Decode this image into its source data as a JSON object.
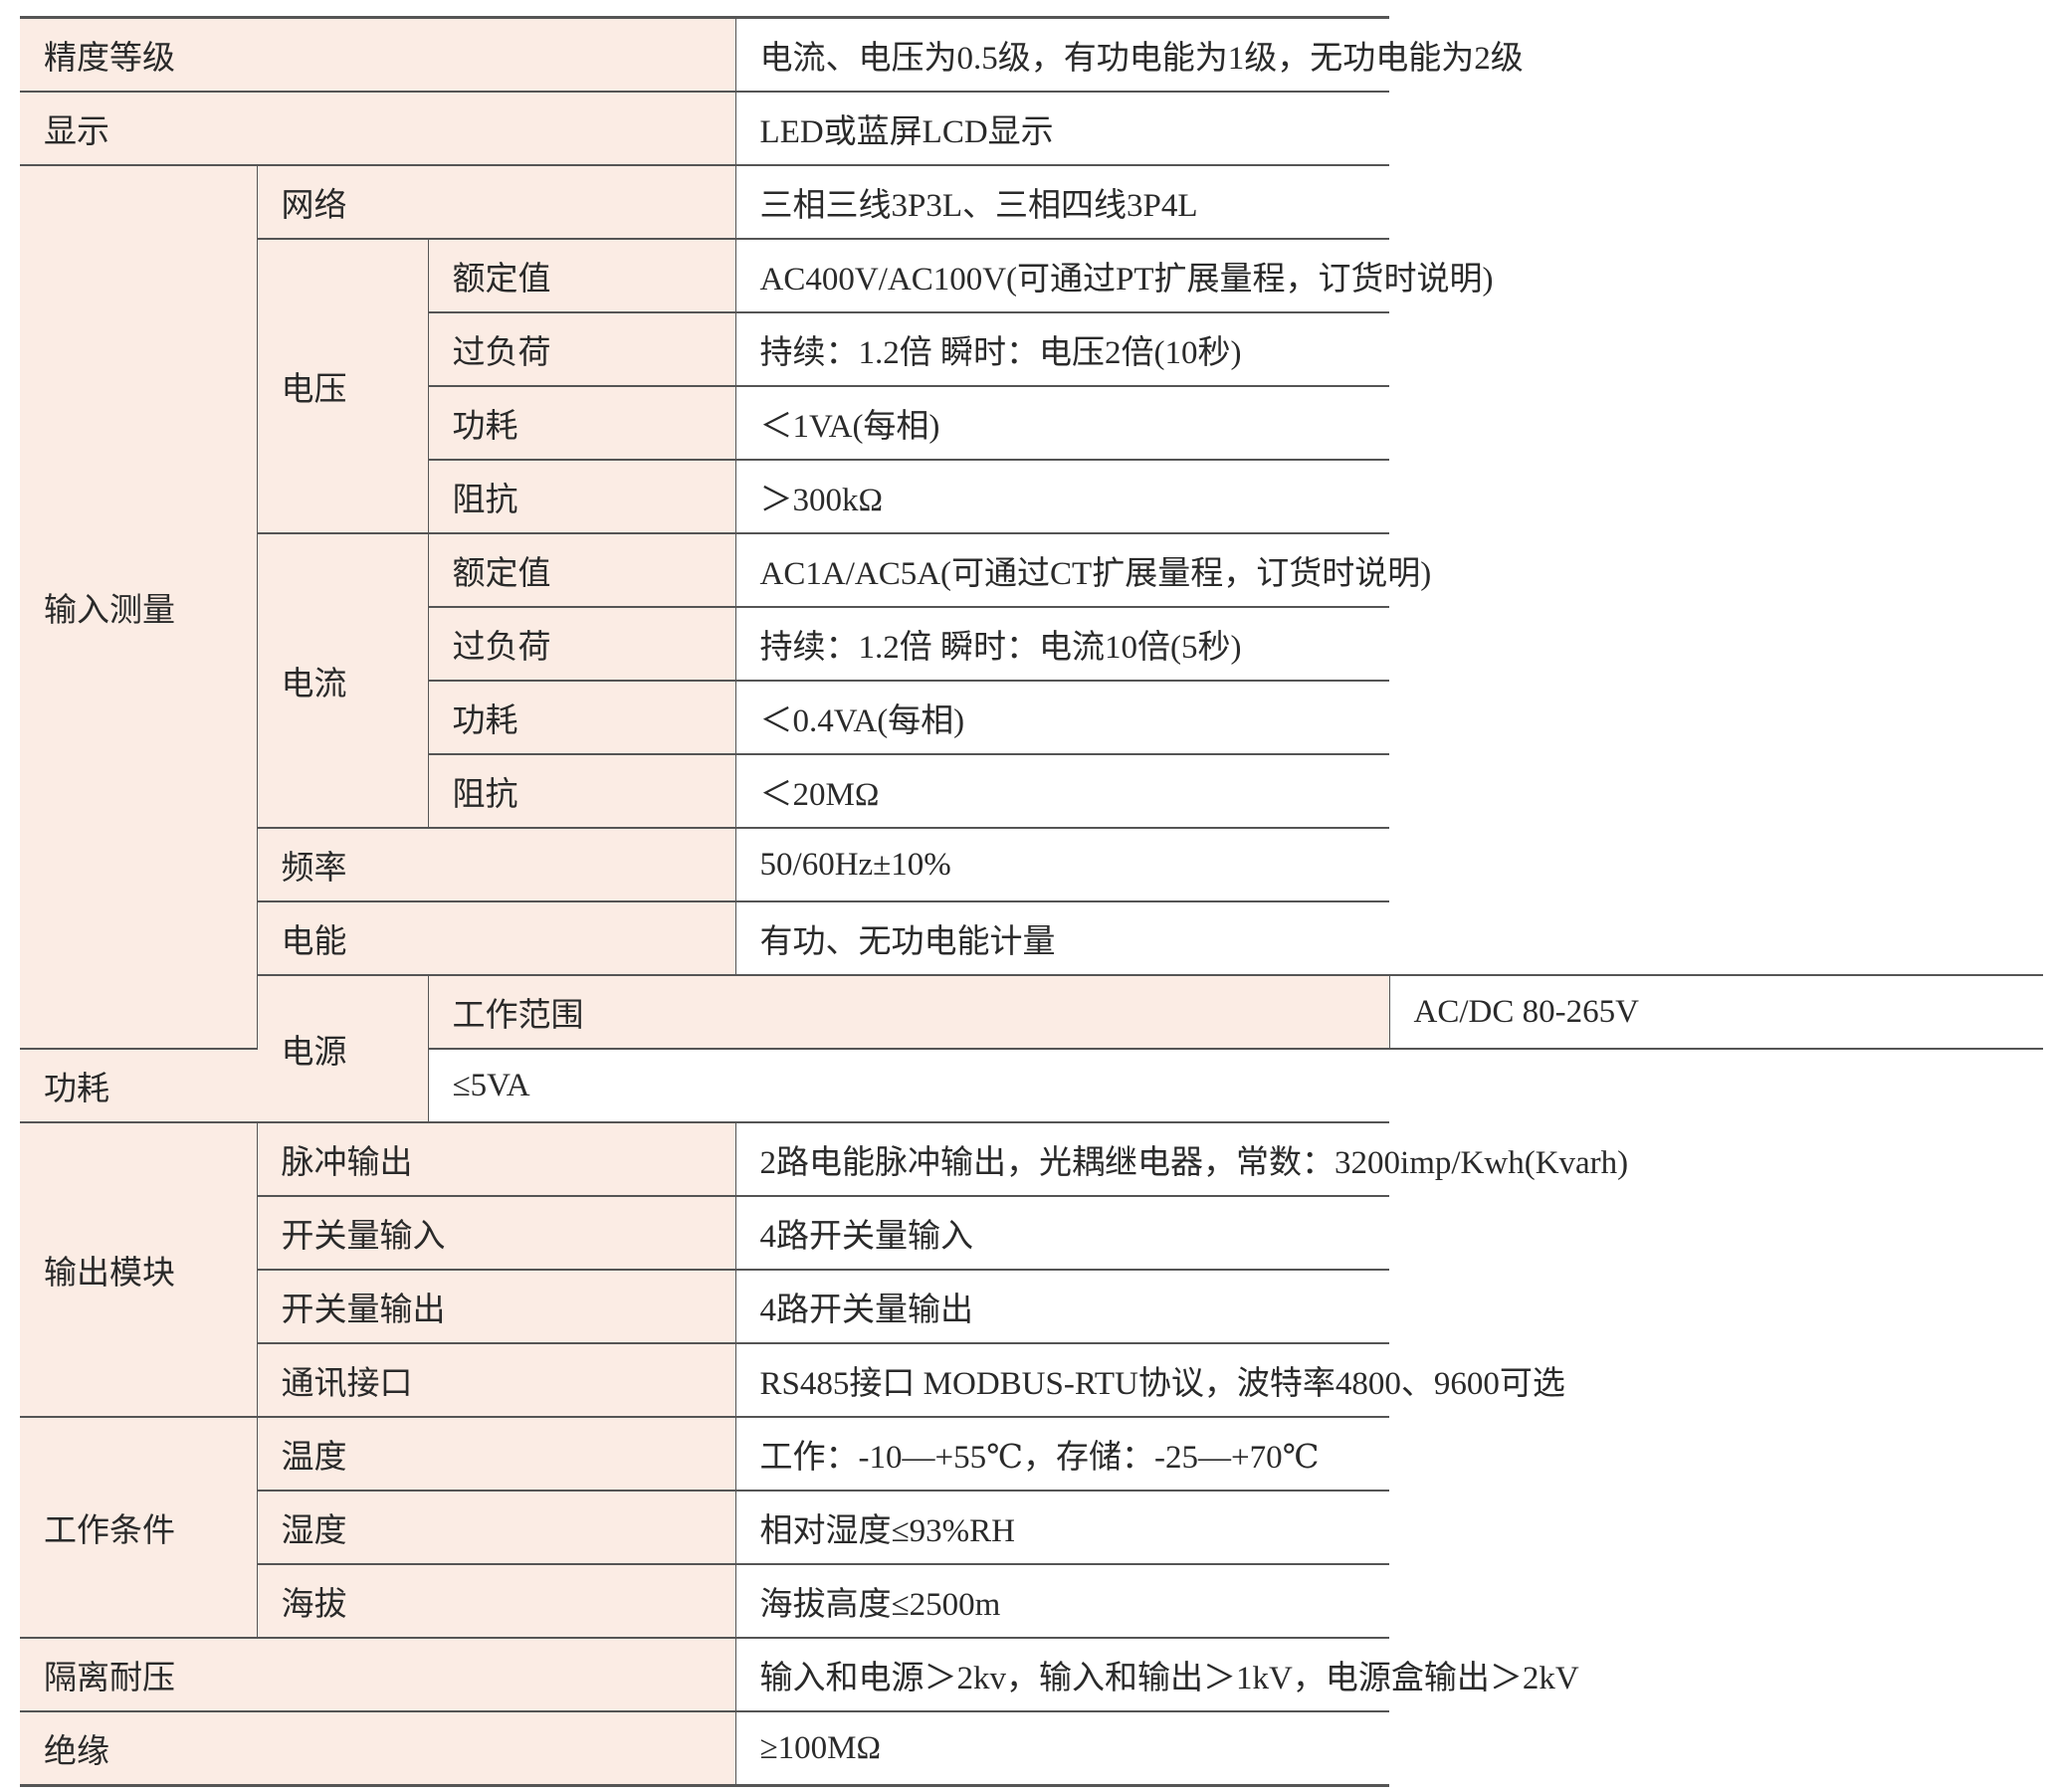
{
  "colors": {
    "label_bg": "#fbece4",
    "value_bg": "#ffffff",
    "rule": "#555555"
  },
  "rows": [
    {
      "label": "精度等级",
      "value": "电流、电压为0.5级，有功电能为1级，无功电能为2级"
    },
    {
      "label": "显示",
      "value": "LED或蓝屏LCD显示"
    },
    {
      "group": "输入测量",
      "label": "网络",
      "value": "三相三线3P3L、三相四线3P4L"
    },
    {
      "sub": "电压",
      "label": "额定值",
      "value": "AC400V/AC100V(可通过PT扩展量程，订货时说明)"
    },
    {
      "label": "过负荷",
      "value": "持续：1.2倍 瞬时：电压2倍(10秒)"
    },
    {
      "label": "功耗",
      "value": "＜1VA(每相)"
    },
    {
      "label": "阻抗",
      "value": "＞300kΩ"
    },
    {
      "sub": "电流",
      "label": "额定值",
      "value": "AC1A/AC5A(可通过CT扩展量程，订货时说明)"
    },
    {
      "label": "过负荷",
      "value": "持续：1.2倍 瞬时：电流10倍(5秒)"
    },
    {
      "label": "功耗",
      "value": "＜0.4VA(每相)"
    },
    {
      "label": "阻抗",
      "value": "＜20MΩ"
    },
    {
      "label": "频率",
      "value": "50/60Hz±10%"
    },
    {
      "label": "电能",
      "value": "有功、无功电能计量"
    },
    {
      "group": "电源",
      "label": "工作范围",
      "value": "AC/DC 80-265V"
    },
    {
      "label": "功耗",
      "value": "≤5VA"
    },
    {
      "group": "输出模块",
      "label": "脉冲输出",
      "value": "2路电能脉冲输出，光耦继电器，常数：3200imp/Kwh(Kvarh)"
    },
    {
      "label": "开关量输入",
      "value": "4路开关量输入"
    },
    {
      "label": "开关量输出",
      "value": "4路开关量输出"
    },
    {
      "label": "通讯接口",
      "value": "RS485接口 MODBUS-RTU协议，波特率4800、9600可选"
    },
    {
      "group": "工作条件",
      "label": "温度",
      "value": "工作：-10—+55℃，存储：-25—+70℃"
    },
    {
      "label": "湿度",
      "value": "相对湿度≤93%RH"
    },
    {
      "label": "海拔",
      "value": "海拔高度≤2500m"
    },
    {
      "label": "隔离耐压",
      "value": "输入和电源＞2kv，输入和输出＞1kV，电源盒输出＞2kV"
    },
    {
      "label": "绝缘",
      "value": "≥100MΩ"
    }
  ]
}
